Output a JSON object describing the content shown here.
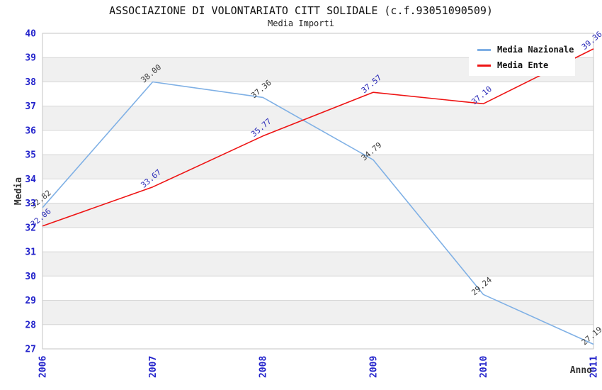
{
  "header": {
    "title": "ASSOCIAZIONE DI VOLONTARIATO CITT SOLIDALE (c.f.93051090509)",
    "subtitle": "Media Importi"
  },
  "chart_data": {
    "type": "line",
    "categories": [
      "2006",
      "2007",
      "2008",
      "2009",
      "2010",
      "2011"
    ],
    "series": [
      {
        "name": "Media Nazionale",
        "values": [
          32.82,
          38.0,
          37.36,
          34.79,
          29.24,
          27.19
        ],
        "labels": [
          "32.82",
          "38.00",
          "37.36",
          "34.79",
          "29.24",
          "27.19"
        ],
        "color": "#7FB0E5",
        "label_color": "#3A3A3A"
      },
      {
        "name": "Media Ente",
        "values": [
          32.06,
          33.67,
          35.77,
          37.57,
          37.1,
          39.36
        ],
        "labels": [
          "32.06",
          "33.67",
          "35.77",
          "37.57",
          "37.10",
          "39.36"
        ],
        "color": "#EE1414",
        "label_color": "#2A2AB8"
      }
    ],
    "xlabel": "Anno",
    "ylabel": "Media",
    "ylim": [
      27,
      40
    ],
    "y_tick_step": 1,
    "grid": true,
    "legend_position": "top-right",
    "band_color": "#F0F0F0",
    "gridline_color": "#D6D6D6",
    "border_color": "#C6C6C6",
    "tick_label_color": "#2323CB",
    "axis_title_color": "#333333"
  }
}
